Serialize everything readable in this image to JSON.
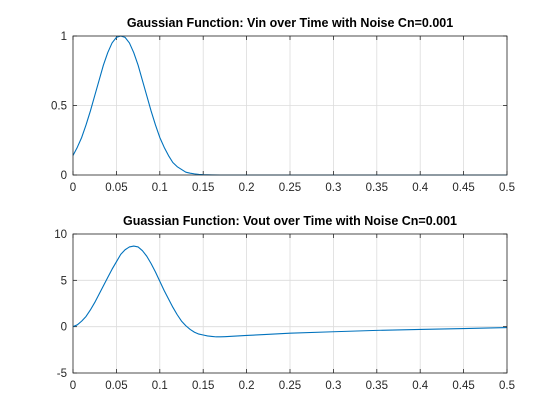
{
  "chart_data": [
    {
      "type": "line",
      "title": "Gaussian Function: Vin over Time with Noise Cn=0.001",
      "xlabel": "",
      "ylabel": "",
      "xlim": [
        0,
        0.5
      ],
      "ylim": [
        0,
        1
      ],
      "xticks": [
        0,
        0.05,
        0.1,
        0.15,
        0.2,
        0.25,
        0.3,
        0.35,
        0.4,
        0.45,
        0.5
      ],
      "xtick_labels": [
        "0",
        "0.05",
        "0.1",
        "0.15",
        "0.2",
        "0.25",
        "0.3",
        "0.35",
        "0.4",
        "0.45",
        "0.5"
      ],
      "yticks": [
        0,
        0.5,
        1
      ],
      "ytick_labels": [
        "0",
        "0.5",
        "1"
      ],
      "grid": true,
      "line_color": "#0072bd",
      "series": [
        {
          "x": [
            0,
            0.005,
            0.01,
            0.015,
            0.02,
            0.025,
            0.03,
            0.035,
            0.04,
            0.045,
            0.05,
            0.055,
            0.06,
            0.065,
            0.07,
            0.075,
            0.08,
            0.085,
            0.09,
            0.095,
            0.1,
            0.105,
            0.11,
            0.115,
            0.12,
            0.125,
            0.13,
            0.135,
            0.14,
            0.145,
            0.15,
            0.155,
            0.16,
            0.17,
            0.18,
            0.2,
            0.25,
            0.3,
            0.35,
            0.4,
            0.45,
            0.5
          ],
          "y": [
            0.14,
            0.2,
            0.27,
            0.36,
            0.46,
            0.57,
            0.68,
            0.79,
            0.88,
            0.95,
            0.99,
            1.0,
            0.99,
            0.95,
            0.88,
            0.79,
            0.68,
            0.57,
            0.46,
            0.36,
            0.27,
            0.2,
            0.14,
            0.09,
            0.06,
            0.04,
            0.02,
            0.013,
            0.008,
            0.004,
            0.002,
            0.001,
            0.0005,
            0.0,
            0.0,
            0.0,
            0.0,
            0.0,
            0.0,
            0.0,
            0.0,
            0.0
          ]
        }
      ]
    },
    {
      "type": "line",
      "title": "Guassian Function: Vout over Time with Noise Cn=0.001",
      "xlabel": "",
      "ylabel": "",
      "xlim": [
        0,
        0.5
      ],
      "ylim": [
        -5,
        10
      ],
      "xticks": [
        0,
        0.05,
        0.1,
        0.15,
        0.2,
        0.25,
        0.3,
        0.35,
        0.4,
        0.45,
        0.5
      ],
      "xtick_labels": [
        "0",
        "0.05",
        "0.1",
        "0.15",
        "0.2",
        "0.25",
        "0.3",
        "0.35",
        "0.4",
        "0.45",
        "0.5"
      ],
      "yticks": [
        -5,
        0,
        5,
        10
      ],
      "ytick_labels": [
        "-5",
        "0",
        "5",
        "10"
      ],
      "grid": true,
      "line_color": "#0072bd",
      "series": [
        {
          "x": [
            0,
            0.005,
            0.01,
            0.015,
            0.02,
            0.025,
            0.03,
            0.035,
            0.04,
            0.045,
            0.05,
            0.055,
            0.06,
            0.065,
            0.07,
            0.075,
            0.08,
            0.085,
            0.09,
            0.095,
            0.1,
            0.105,
            0.11,
            0.115,
            0.12,
            0.125,
            0.13,
            0.135,
            0.14,
            0.145,
            0.15,
            0.155,
            0.16,
            0.165,
            0.17,
            0.175,
            0.18,
            0.19,
            0.2,
            0.22,
            0.25,
            0.3,
            0.35,
            0.4,
            0.45,
            0.5
          ],
          "y": [
            0.0,
            0.2,
            0.6,
            1.1,
            1.8,
            2.6,
            3.5,
            4.4,
            5.3,
            6.2,
            7.0,
            7.8,
            8.3,
            8.6,
            8.7,
            8.6,
            8.2,
            7.6,
            6.8,
            5.9,
            4.9,
            3.9,
            3.0,
            2.1,
            1.3,
            0.6,
            0.1,
            -0.3,
            -0.6,
            -0.8,
            -0.9,
            -1.0,
            -1.05,
            -1.1,
            -1.1,
            -1.08,
            -1.05,
            -1.0,
            -0.95,
            -0.85,
            -0.7,
            -0.55,
            -0.4,
            -0.3,
            -0.2,
            -0.1
          ]
        }
      ]
    }
  ]
}
